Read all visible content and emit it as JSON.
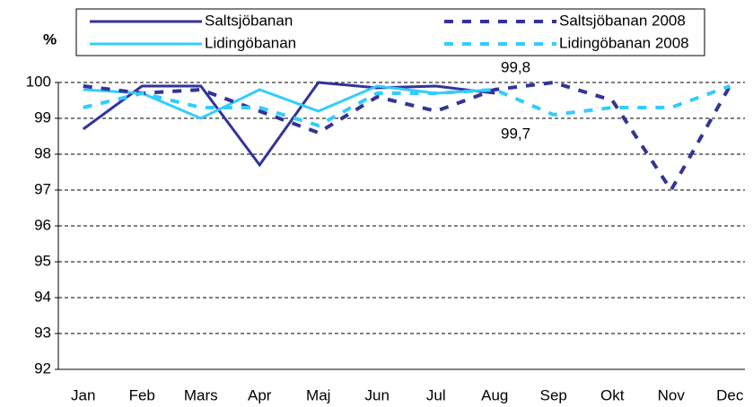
{
  "chart_data": {
    "type": "line",
    "y_label": "%",
    "categories": [
      "Jan",
      "Feb",
      "Mars",
      "Apr",
      "Maj",
      "Jun",
      "Jul",
      "Aug",
      "Sep",
      "Okt",
      "Nov",
      "Dec"
    ],
    "series": [
      {
        "name": "Saltsjöbanan",
        "color": "#333399",
        "dashed": false,
        "values": [
          98.7,
          99.9,
          99.9,
          97.7,
          100.0,
          99.85,
          99.9,
          99.7,
          null,
          null,
          null,
          null
        ]
      },
      {
        "name": "Lidingöbanan",
        "color": "#33ccff",
        "dashed": false,
        "values": [
          99.8,
          99.7,
          99.0,
          99.8,
          99.2,
          99.9,
          99.7,
          99.8,
          null,
          null,
          null,
          null
        ]
      },
      {
        "name": "Saltsjöbanan 2008",
        "color": "#333399",
        "dashed": true,
        "values": [
          99.9,
          99.7,
          99.8,
          99.2,
          98.6,
          99.6,
          99.2,
          99.8,
          100.0,
          99.5,
          97.0,
          99.9
        ]
      },
      {
        "name": "Lidingöbanan 2008",
        "color": "#33ccff",
        "dashed": true,
        "values": [
          99.3,
          99.7,
          99.3,
          99.3,
          98.8,
          99.7,
          99.7,
          99.8,
          99.1,
          99.3,
          99.3,
          99.9
        ]
      }
    ],
    "annotations": [
      "99,8",
      "99,7"
    ],
    "ylim": [
      92,
      100
    ],
    "yticks": [
      92,
      93,
      94,
      95,
      96,
      97,
      98,
      99,
      100
    ],
    "grid": true
  }
}
